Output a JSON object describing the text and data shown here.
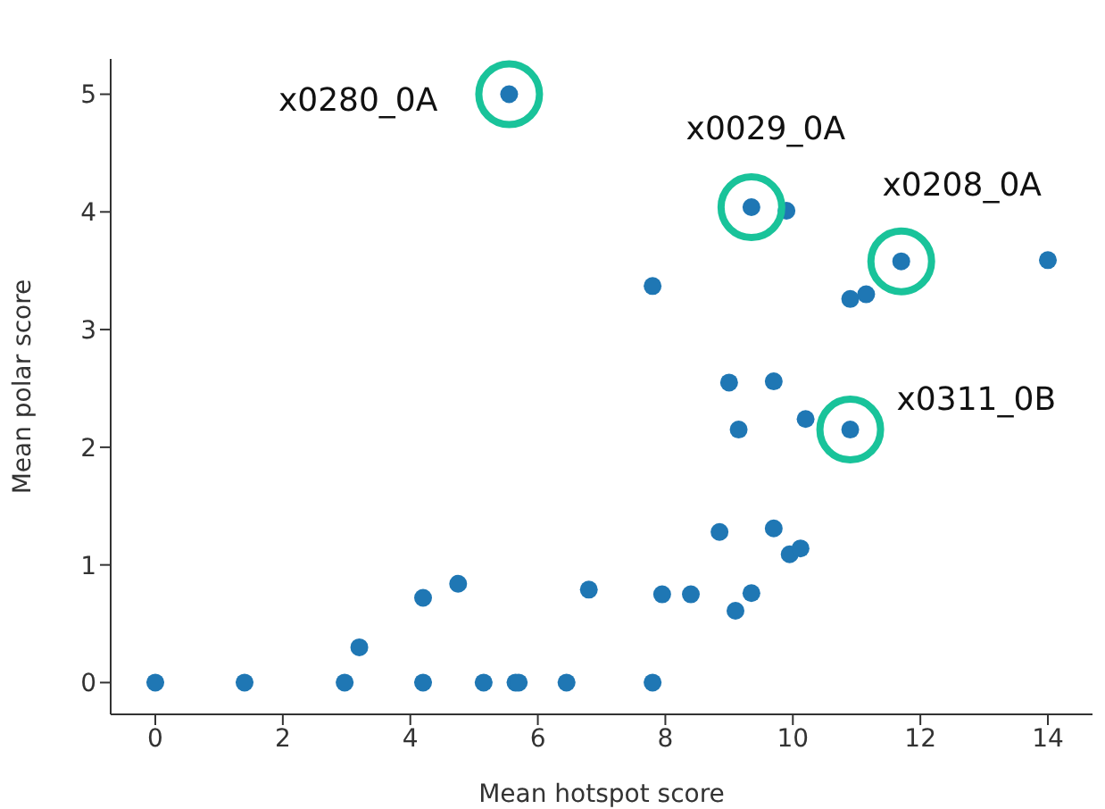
{
  "chart_data": {
    "type": "scatter",
    "xlabel": "Mean hotspot score",
    "ylabel": "Mean polar score",
    "color": "#1f77b4",
    "marker": "circle",
    "grid": false,
    "x": [
      0,
      1.4,
      2.97,
      3.2,
      4.2,
      4.2,
      4.75,
      5.15,
      5.65,
      5.7,
      6.45,
      6.8,
      7.8,
      7.8,
      7.95,
      8.4,
      8.85,
      9.0,
      9.15,
      9.1,
      9.35,
      9.35,
      9.9,
      9.7,
      9.7,
      9.95,
      10.12,
      10.2,
      10.9,
      10.9,
      11.15,
      11.7,
      14.0,
      5.55
    ],
    "values": [
      0,
      0,
      0,
      0.3,
      0,
      0.72,
      0.84,
      0,
      0,
      0,
      0,
      0.79,
      0,
      3.37,
      0.75,
      0.75,
      1.28,
      2.55,
      2.15,
      0.61,
      0.76,
      4.04,
      4.01,
      2.56,
      1.31,
      1.09,
      1.14,
      2.24,
      2.15,
      3.26,
      3.3,
      3.58,
      3.59,
      5.0
    ],
    "xlim": [
      -0.7,
      14.7
    ],
    "xticks": [
      0,
      2,
      4,
      6,
      8,
      10,
      12,
      14
    ],
    "ylim": [
      -0.27,
      5.3
    ],
    "yticks": [
      0,
      1,
      2,
      3,
      4,
      5
    ],
    "annotations": [
      {
        "text": "x0280_0A",
        "x": 5.55,
        "y": 5.0
      },
      {
        "text": "x0029_0A",
        "x": 9.35,
        "y": 4.04
      },
      {
        "text": "x0208_0A",
        "x": 11.7,
        "y": 3.58
      },
      {
        "text": "x0311_0B",
        "x": 10.9,
        "y": 2.15
      }
    ]
  }
}
